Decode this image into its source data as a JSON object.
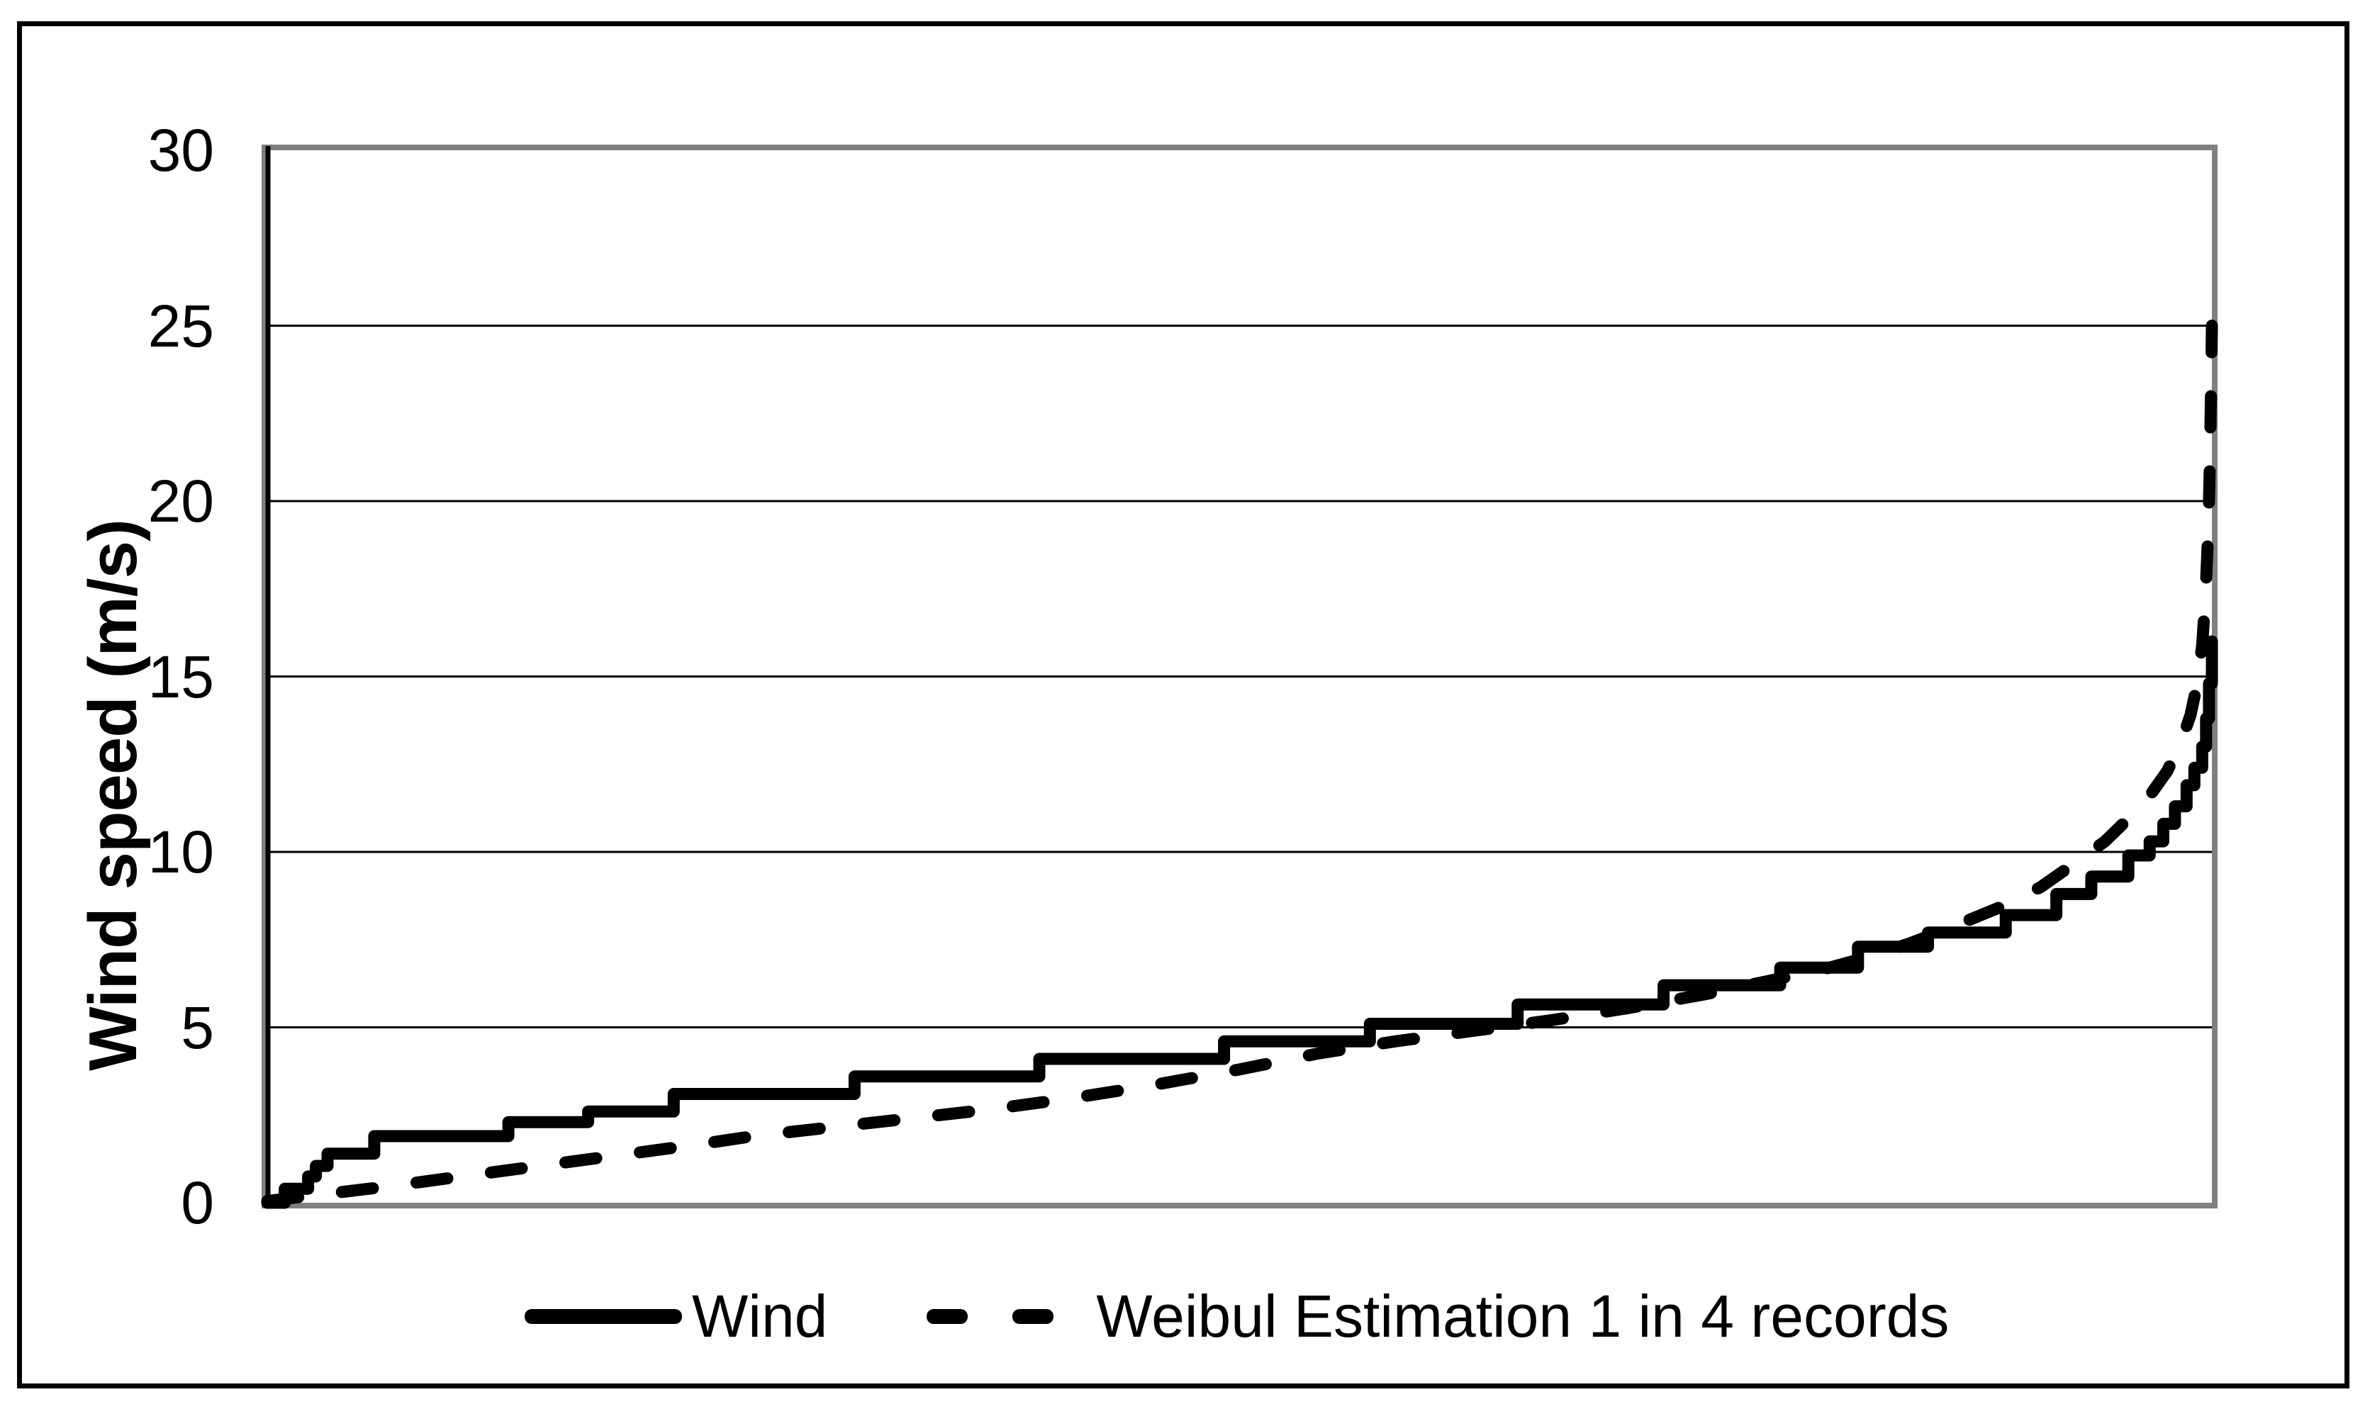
{
  "figure": {
    "background": "#ffffff",
    "outer_border_color": "#000000",
    "plot_border_color": "#808080",
    "line_color": "#000000"
  },
  "chart_data": {
    "type": "line",
    "title": "",
    "xlabel": "",
    "ylabel": "Wind speed (m/s)",
    "ylim": [
      0,
      30
    ],
    "yticks": [
      0,
      5,
      10,
      15,
      20,
      25,
      30
    ],
    "xlim": [
      0,
      1
    ],
    "grid": "horizontal",
    "legend_position": "bottom",
    "series": [
      {
        "name": "Wind",
        "style": "solid",
        "points": [
          [
            0,
            0
          ],
          [
            0.009,
            0
          ],
          [
            0.009,
            0.4
          ],
          [
            0.021,
            0.4
          ],
          [
            0.021,
            0.75
          ],
          [
            0.025,
            0.75
          ],
          [
            0.025,
            1.05
          ],
          [
            0.031,
            1.05
          ],
          [
            0.031,
            1.4
          ],
          [
            0.055,
            1.4
          ],
          [
            0.055,
            1.9
          ],
          [
            0.124,
            1.9
          ],
          [
            0.124,
            2.3
          ],
          [
            0.165,
            2.3
          ],
          [
            0.165,
            2.6
          ],
          [
            0.209,
            2.6
          ],
          [
            0.209,
            3.1
          ],
          [
            0.302,
            3.1
          ],
          [
            0.302,
            3.6
          ],
          [
            0.397,
            3.6
          ],
          [
            0.397,
            4.1
          ],
          [
            0.492,
            4.1
          ],
          [
            0.492,
            4.6
          ],
          [
            0.567,
            4.6
          ],
          [
            0.567,
            5.1
          ],
          [
            0.643,
            5.1
          ],
          [
            0.643,
            5.65
          ],
          [
            0.718,
            5.65
          ],
          [
            0.718,
            6.2
          ],
          [
            0.778,
            6.2
          ],
          [
            0.778,
            6.7
          ],
          [
            0.818,
            6.7
          ],
          [
            0.818,
            7.3
          ],
          [
            0.854,
            7.3
          ],
          [
            0.854,
            7.7
          ],
          [
            0.894,
            7.7
          ],
          [
            0.894,
            8.2
          ],
          [
            0.92,
            8.2
          ],
          [
            0.92,
            8.8
          ],
          [
            0.938,
            8.8
          ],
          [
            0.938,
            9.3
          ],
          [
            0.957,
            9.3
          ],
          [
            0.957,
            9.9
          ],
          [
            0.968,
            9.9
          ],
          [
            0.968,
            10.3
          ],
          [
            0.975,
            10.3
          ],
          [
            0.975,
            10.8
          ],
          [
            0.981,
            10.8
          ],
          [
            0.981,
            11.3
          ],
          [
            0.987,
            11.3
          ],
          [
            0.987,
            11.9
          ],
          [
            0.991,
            11.9
          ],
          [
            0.991,
            12.4
          ],
          [
            0.995,
            12.4
          ],
          [
            0.995,
            13.0
          ],
          [
            0.997,
            13.0
          ],
          [
            0.997,
            13.8
          ],
          [
            0.9985,
            13.8
          ],
          [
            0.9985,
            14.8
          ],
          [
            1,
            14.8
          ],
          [
            1,
            16.0
          ]
        ]
      },
      {
        "name": "Weibul Estimation 1 in 4 records",
        "style": "dashed",
        "points": [
          [
            0,
            0.05
          ],
          [
            0.03,
            0.25
          ],
          [
            0.06,
            0.45
          ],
          [
            0.1,
            0.75
          ],
          [
            0.14,
            1.05
          ],
          [
            0.18,
            1.35
          ],
          [
            0.22,
            1.65
          ],
          [
            0.25,
            1.9
          ],
          [
            0.29,
            2.15
          ],
          [
            0.33,
            2.4
          ],
          [
            0.37,
            2.65
          ],
          [
            0.41,
            2.95
          ],
          [
            0.45,
            3.3
          ],
          [
            0.5,
            3.8
          ],
          [
            0.54,
            4.25
          ],
          [
            0.58,
            4.6
          ],
          [
            0.62,
            4.9
          ],
          [
            0.66,
            5.2
          ],
          [
            0.7,
            5.55
          ],
          [
            0.74,
            5.95
          ],
          [
            0.77,
            6.3
          ],
          [
            0.8,
            6.65
          ],
          [
            0.823,
            7.0
          ],
          [
            0.845,
            7.4
          ],
          [
            0.868,
            7.9
          ],
          [
            0.89,
            8.4
          ],
          [
            0.912,
            9.0
          ],
          [
            0.93,
            9.7
          ],
          [
            0.945,
            10.3
          ],
          [
            0.958,
            11.0
          ],
          [
            0.968,
            11.6
          ],
          [
            0.977,
            12.3
          ],
          [
            0.984,
            13.1
          ],
          [
            0.989,
            13.9
          ],
          [
            0.9925,
            14.8
          ],
          [
            0.995,
            15.9
          ],
          [
            0.9966,
            17.2
          ],
          [
            0.9977,
            18.6
          ],
          [
            0.9985,
            20.0
          ],
          [
            0.9991,
            21.5
          ],
          [
            0.9995,
            23.0
          ],
          [
            0.9998,
            24.2
          ],
          [
            1,
            25.0
          ]
        ]
      }
    ]
  }
}
